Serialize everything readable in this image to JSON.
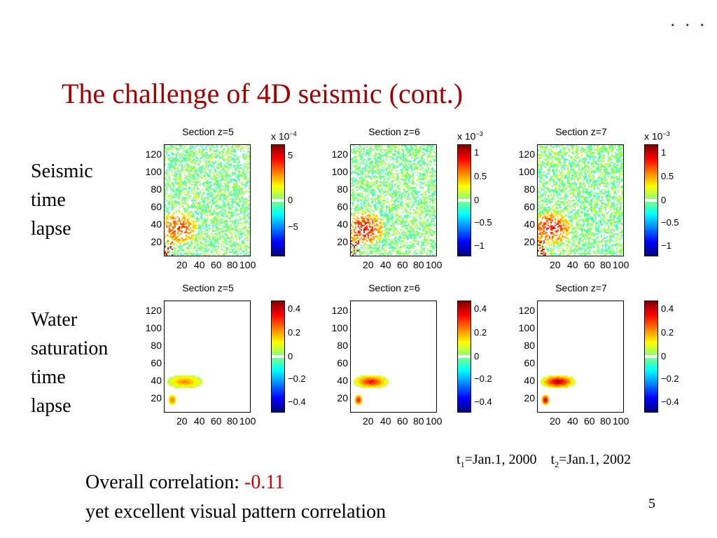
{
  "slide": {
    "corner_marker": ". . .",
    "title": "The challenge of 4D seismic (cont.)",
    "page_number": "5"
  },
  "rows": [
    {
      "label_lines": [
        "Seismic",
        "time",
        "lapse"
      ],
      "panels": [
        {
          "title": "Section z=5",
          "cbar_multiplier": "x 10",
          "cbar_exponent": "−4",
          "cbar_ticks": [
            "5",
            "0",
            "−5"
          ],
          "intensity": 0.7,
          "pattern": "noise"
        },
        {
          "title": "Section z=6",
          "cbar_multiplier": "x 10",
          "cbar_exponent": "−3",
          "cbar_ticks": [
            "1",
            "0.5",
            "0",
            "−0.5",
            "−1"
          ],
          "intensity": 0.8,
          "pattern": "noise"
        },
        {
          "title": "Section z=7",
          "cbar_multiplier": "x 10",
          "cbar_exponent": "−3",
          "cbar_ticks": [
            "1",
            "0.5",
            "0",
            "−0.5",
            "−1"
          ],
          "intensity": 0.8,
          "pattern": "noise"
        }
      ]
    },
    {
      "label_lines": [
        "Water",
        "saturation",
        "time",
        "lapse"
      ],
      "panels": [
        {
          "title": "Section z=5",
          "cbar_multiplier": "",
          "cbar_exponent": "",
          "cbar_ticks": [
            "0.4",
            "0.2",
            "0",
            "−0.2",
            "−0.4"
          ],
          "intensity": 0.35,
          "pattern": "plume"
        },
        {
          "title": "Section z=6",
          "cbar_multiplier": "",
          "cbar_exponent": "",
          "cbar_ticks": [
            "0.4",
            "0.2",
            "0",
            "−0.2",
            "−0.4"
          ],
          "intensity": 0.6,
          "pattern": "plume"
        },
        {
          "title": "Section z=7",
          "cbar_multiplier": "",
          "cbar_exponent": "",
          "cbar_ticks": [
            "0.4",
            "0.2",
            "0",
            "−0.2",
            "−0.4"
          ],
          "intensity": 0.75,
          "pattern": "plume"
        }
      ]
    }
  ],
  "axes": {
    "y_ticks": [
      "120",
      "100",
      "80",
      "60",
      "40",
      "20"
    ],
    "x_ticks": [
      "20",
      "40",
      "60",
      "80",
      "100"
    ]
  },
  "dates": {
    "t1_label": "t",
    "t1_sub": "1",
    "t1_value": "=Jan.1, 2000",
    "t2_label": "t",
    "t2_sub": "2",
    "t2_value": "=Jan.1, 2002"
  },
  "correlation": {
    "label": "Overall correlation: ",
    "value": "-0.11",
    "note": "yet excellent visual pattern correlation"
  }
}
